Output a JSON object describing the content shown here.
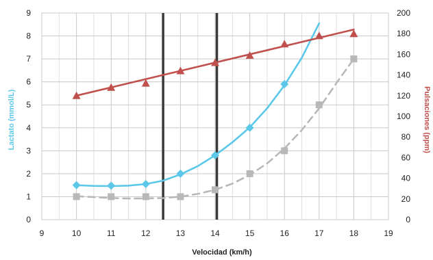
{
  "chart_data": {
    "type": "line",
    "xlabel": "Velocidad (km/h)",
    "ylabel": "Lactato (mmol/L)",
    "y2label": "Pulsaciones (ppm)",
    "xlim": [
      9,
      19
    ],
    "ylim": [
      0,
      9
    ],
    "y2lim": [
      0,
      200
    ],
    "x_ticks": [
      9,
      10,
      11,
      12,
      13,
      14,
      15,
      16,
      17,
      18,
      19
    ],
    "y_ticks": [
      0,
      1,
      2,
      3,
      4,
      5,
      6,
      7,
      8,
      9
    ],
    "y2_ticks": [
      0,
      20,
      40,
      60,
      80,
      100,
      120,
      140,
      160,
      180,
      200
    ],
    "grid": true,
    "legend": "none",
    "vertical_lines": [
      12.5,
      14.05
    ],
    "series": [
      {
        "axis": "left",
        "style": "solid",
        "marker": "diamond",
        "color": "#5bc8ea",
        "points": [
          {
            "x": 10,
            "y": 1.5
          },
          {
            "x": 11,
            "y": 1.48
          },
          {
            "x": 12,
            "y": 1.55
          },
          {
            "x": 13,
            "y": 2.0
          },
          {
            "x": 14,
            "y": 2.8
          },
          {
            "x": 15,
            "y": 4.0
          },
          {
            "x": 16,
            "y": 5.9
          }
        ],
        "curve": [
          {
            "x": 10,
            "y": 1.5
          },
          {
            "x": 10.5,
            "y": 1.47
          },
          {
            "x": 11,
            "y": 1.46
          },
          {
            "x": 11.5,
            "y": 1.48
          },
          {
            "x": 12,
            "y": 1.55
          },
          {
            "x": 12.5,
            "y": 1.7
          },
          {
            "x": 13,
            "y": 1.97
          },
          {
            "x": 13.5,
            "y": 2.33
          },
          {
            "x": 14,
            "y": 2.8
          },
          {
            "x": 14.5,
            "y": 3.37
          },
          {
            "x": 15,
            "y": 4.02
          },
          {
            "x": 15.5,
            "y": 4.85
          },
          {
            "x": 16,
            "y": 5.85
          },
          {
            "x": 16.5,
            "y": 7.05
          },
          {
            "x": 17,
            "y": 8.55
          }
        ]
      },
      {
        "axis": "left",
        "style": "dashed",
        "marker": "square",
        "color": "#b8b8b8",
        "points": [
          {
            "x": 10,
            "y": 1.0
          },
          {
            "x": 11,
            "y": 1.0
          },
          {
            "x": 12,
            "y": 1.0
          },
          {
            "x": 13,
            "y": 1.0
          },
          {
            "x": 14,
            "y": 1.3
          },
          {
            "x": 15,
            "y": 2.0
          },
          {
            "x": 16,
            "y": 3.0
          },
          {
            "x": 17,
            "y": 5.0
          },
          {
            "x": 18,
            "y": 7.0
          }
        ],
        "curve": [
          {
            "x": 10,
            "y": 1.02
          },
          {
            "x": 10.5,
            "y": 0.98
          },
          {
            "x": 11,
            "y": 0.94
          },
          {
            "x": 11.5,
            "y": 0.92
          },
          {
            "x": 12,
            "y": 0.92
          },
          {
            "x": 12.5,
            "y": 0.94
          },
          {
            "x": 13,
            "y": 1.0
          },
          {
            "x": 13.5,
            "y": 1.12
          },
          {
            "x": 14,
            "y": 1.3
          },
          {
            "x": 14.5,
            "y": 1.57
          },
          {
            "x": 15,
            "y": 1.95
          },
          {
            "x": 15.5,
            "y": 2.45
          },
          {
            "x": 16,
            "y": 3.1
          },
          {
            "x": 16.5,
            "y": 3.9
          },
          {
            "x": 17,
            "y": 4.85
          },
          {
            "x": 17.5,
            "y": 5.95
          },
          {
            "x": 18,
            "y": 7.0
          }
        ]
      },
      {
        "axis": "right",
        "style": "solid",
        "marker": "triangle",
        "color": "#c0504d",
        "points": [
          {
            "x": 10,
            "y": 120
          },
          {
            "x": 11,
            "y": 128
          },
          {
            "x": 12,
            "y": 132
          },
          {
            "x": 13,
            "y": 144
          },
          {
            "x": 14,
            "y": 152
          },
          {
            "x": 15,
            "y": 159
          },
          {
            "x": 16,
            "y": 170
          },
          {
            "x": 17,
            "y": 178
          },
          {
            "x": 18,
            "y": 180
          }
        ],
        "curve": [
          {
            "x": 10,
            "y": 120
          },
          {
            "x": 18,
            "y": 184
          }
        ]
      }
    ]
  }
}
